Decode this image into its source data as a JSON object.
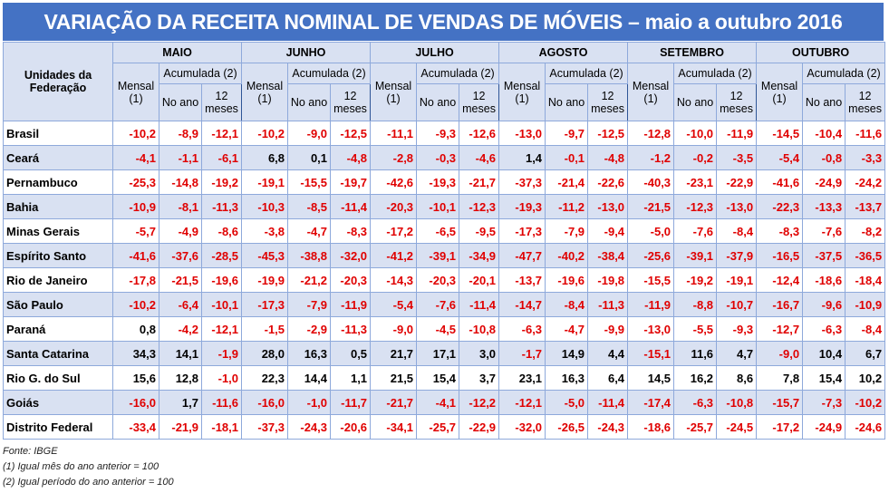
{
  "title": "VARIAÇÃO DA RECEITA NOMINAL DE VENDAS DE MÓVEIS – maio a outubro 2016",
  "header": {
    "uf": "Unidades da Federação",
    "mensal": "Mensal (1)",
    "acumulada": "Acumulada (2)",
    "no_ano": "No ano",
    "doze_meses": "12 meses",
    "months": [
      "MAIO",
      "JUNHO",
      "JULHO",
      "AGOSTO",
      "SETEMBRO",
      "OUTUBRO"
    ]
  },
  "rows": [
    {
      "uf": "Brasil",
      "v": [
        "-10,2",
        "-8,9",
        "-12,1",
        "-10,2",
        "-9,0",
        "-12,5",
        "-11,1",
        "-9,3",
        "-12,6",
        "-13,0",
        "-9,7",
        "-12,5",
        "-12,8",
        "-10,0",
        "-11,9",
        "-14,5",
        "-10,4",
        "-11,6"
      ]
    },
    {
      "uf": "Ceará",
      "v": [
        "-4,1",
        "-1,1",
        "-6,1",
        "6,8",
        "0,1",
        "-4,8",
        "-2,8",
        "-0,3",
        "-4,6",
        "1,4",
        "-0,1",
        "-4,8",
        "-1,2",
        "-0,2",
        "-3,5",
        "-5,4",
        "-0,8",
        "-3,3"
      ]
    },
    {
      "uf": "Pernambuco",
      "v": [
        "-25,3",
        "-14,8",
        "-19,2",
        "-19,1",
        "-15,5",
        "-19,7",
        "-42,6",
        "-19,3",
        "-21,7",
        "-37,3",
        "-21,4",
        "-22,6",
        "-40,3",
        "-23,1",
        "-22,9",
        "-41,6",
        "-24,9",
        "-24,2"
      ]
    },
    {
      "uf": "Bahia",
      "v": [
        "-10,9",
        "-8,1",
        "-11,3",
        "-10,3",
        "-8,5",
        "-11,4",
        "-20,3",
        "-10,1",
        "-12,3",
        "-19,3",
        "-11,2",
        "-13,0",
        "-21,5",
        "-12,3",
        "-13,0",
        "-22,3",
        "-13,3",
        "-13,7"
      ]
    },
    {
      "uf": "Minas Gerais",
      "v": [
        "-5,7",
        "-4,9",
        "-8,6",
        "-3,8",
        "-4,7",
        "-8,3",
        "-17,2",
        "-6,5",
        "-9,5",
        "-17,3",
        "-7,9",
        "-9,4",
        "-5,0",
        "-7,6",
        "-8,4",
        "-8,3",
        "-7,6",
        "-8,2"
      ]
    },
    {
      "uf": "Espírito Santo",
      "v": [
        "-41,6",
        "-37,6",
        "-28,5",
        "-45,3",
        "-38,8",
        "-32,0",
        "-41,2",
        "-39,1",
        "-34,9",
        "-47,7",
        "-40,2",
        "-38,4",
        "-25,6",
        "-39,1",
        "-37,9",
        "-16,5",
        "-37,5",
        "-36,5"
      ]
    },
    {
      "uf": "Rio de Janeiro",
      "v": [
        "-17,8",
        "-21,5",
        "-19,6",
        "-19,9",
        "-21,2",
        "-20,3",
        "-14,3",
        "-20,3",
        "-20,1",
        "-13,7",
        "-19,6",
        "-19,8",
        "-15,5",
        "-19,2",
        "-19,1",
        "-12,4",
        "-18,6",
        "-18,4"
      ]
    },
    {
      "uf": "São Paulo",
      "v": [
        "-10,2",
        "-6,4",
        "-10,1",
        "-17,3",
        "-7,9",
        "-11,9",
        "-5,4",
        "-7,6",
        "-11,4",
        "-14,7",
        "-8,4",
        "-11,3",
        "-11,9",
        "-8,8",
        "-10,7",
        "-16,7",
        "-9,6",
        "-10,9"
      ]
    },
    {
      "uf": "Paraná",
      "v": [
        "0,8",
        "-4,2",
        "-12,1",
        "-1,5",
        "-2,9",
        "-11,3",
        "-9,0",
        "-4,5",
        "-10,8",
        "-6,3",
        "-4,7",
        "-9,9",
        "-13,0",
        "-5,5",
        "-9,3",
        "-12,7",
        "-6,3",
        "-8,4"
      ]
    },
    {
      "uf": "Santa Catarina",
      "v": [
        "34,3",
        "14,1",
        "-1,9",
        "28,0",
        "16,3",
        "0,5",
        "21,7",
        "17,1",
        "3,0",
        "-1,7",
        "14,9",
        "4,4",
        "-15,1",
        "11,6",
        "4,7",
        "-9,0",
        "10,4",
        "6,7"
      ]
    },
    {
      "uf": "Rio G. do Sul",
      "v": [
        "15,6",
        "12,8",
        "-1,0",
        "22,3",
        "14,4",
        "1,1",
        "21,5",
        "15,4",
        "3,7",
        "23,1",
        "16,3",
        "6,4",
        "14,5",
        "16,2",
        "8,6",
        "7,8",
        "15,4",
        "10,2"
      ]
    },
    {
      "uf": "Goiás",
      "v": [
        "-16,0",
        "1,7",
        "-11,6",
        "-16,0",
        "-1,0",
        "-11,7",
        "-21,7",
        "-4,1",
        "-12,2",
        "-12,1",
        "-5,0",
        "-11,4",
        "-17,4",
        "-6,3",
        "-10,8",
        "-15,7",
        "-7,3",
        "-10,2"
      ]
    },
    {
      "uf": "Distrito Federal",
      "v": [
        "-33,4",
        "-21,9",
        "-18,1",
        "-37,3",
        "-24,3",
        "-20,6",
        "-34,1",
        "-25,7",
        "-22,9",
        "-32,0",
        "-26,5",
        "-24,3",
        "-18,6",
        "-25,7",
        "-24,5",
        "-17,2",
        "-24,9",
        "-24,6"
      ]
    }
  ],
  "notes": {
    "source": "Fonte: IBGE",
    "n1": "(1) Igual mês do ano anterior = 100",
    "n2": "(2) Igual período do ano anterior = 100"
  },
  "colors": {
    "header_bg": "#4472C4",
    "band": "#D9E1F2",
    "negative": "#E00000"
  }
}
